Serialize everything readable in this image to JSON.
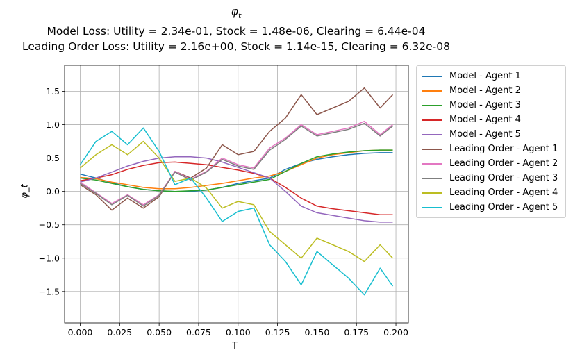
{
  "title": {
    "main": "φ",
    "main_sub": "t",
    "line2": "Model Loss: Utility = 2.34e-01, Stock = 1.48e-06, Clearing = 6.44e-04",
    "line3": "Leading Order Loss: Utility = 2.16e+00, Stock = 1.14e-15, Clearing = 6.32e-08"
  },
  "chart_data": {
    "type": "line",
    "xlabel": "T",
    "ylabel": "φ_t",
    "xlim": [
      -0.0099,
      0.2079
    ],
    "ylim": [
      -1.97,
      1.89
    ],
    "grid": true,
    "legend_position": "outside-right",
    "x_ticks": [
      "0.000",
      "0.025",
      "0.050",
      "0.075",
      "0.100",
      "0.125",
      "0.150",
      "0.175",
      "0.200"
    ],
    "y_ticks": [
      "−1.5",
      "−1.0",
      "−0.5",
      "0.0",
      "0.5",
      "1.0",
      "1.5"
    ],
    "x_tick_values": [
      0,
      0.025,
      0.05,
      0.075,
      0.1,
      0.125,
      0.15,
      0.175,
      0.2
    ],
    "y_tick_values": [
      -1.5,
      -1.0,
      -0.5,
      0.0,
      0.5,
      1.0,
      1.5
    ],
    "x": [
      0.0,
      0.01,
      0.02,
      0.03,
      0.04,
      0.05,
      0.06,
      0.07,
      0.08,
      0.09,
      0.1,
      0.11,
      0.12,
      0.13,
      0.14,
      0.15,
      0.16,
      0.17,
      0.18,
      0.19,
      0.198
    ],
    "series": [
      {
        "name": "Model - Agent 1",
        "color": "#1f77b4",
        "values": [
          0.26,
          0.2,
          0.13,
          0.07,
          0.03,
          0.01,
          0.0,
          0.0,
          0.02,
          0.06,
          0.12,
          0.16,
          0.2,
          0.33,
          0.42,
          0.48,
          0.52,
          0.55,
          0.57,
          0.58,
          0.58
        ]
      },
      {
        "name": "Model - Agent 2",
        "color": "#ff7f0e",
        "values": [
          0.21,
          0.19,
          0.14,
          0.1,
          0.06,
          0.04,
          0.04,
          0.06,
          0.09,
          0.12,
          0.16,
          0.2,
          0.23,
          0.3,
          0.4,
          0.5,
          0.55,
          0.58,
          0.61,
          0.62,
          0.62
        ]
      },
      {
        "name": "Model - Agent 3",
        "color": "#2ca02c",
        "values": [
          0.2,
          0.17,
          0.12,
          0.07,
          0.03,
          0.01,
          0.0,
          0.01,
          0.02,
          0.06,
          0.1,
          0.14,
          0.18,
          0.3,
          0.42,
          0.52,
          0.56,
          0.59,
          0.61,
          0.62,
          0.62
        ]
      },
      {
        "name": "Model - Agent 4",
        "color": "#d62728",
        "values": [
          0.16,
          0.2,
          0.25,
          0.33,
          0.39,
          0.43,
          0.44,
          0.42,
          0.4,
          0.36,
          0.32,
          0.27,
          0.2,
          0.06,
          -0.1,
          -0.22,
          -0.26,
          -0.29,
          -0.32,
          -0.35,
          -0.35
        ]
      },
      {
        "name": "Model - Agent 5",
        "color": "#9467bd",
        "values": [
          0.14,
          0.2,
          0.29,
          0.38,
          0.45,
          0.5,
          0.52,
          0.52,
          0.5,
          0.44,
          0.36,
          0.28,
          0.2,
          0.0,
          -0.22,
          -0.32,
          -0.36,
          -0.4,
          -0.44,
          -0.46,
          -0.46
        ]
      },
      {
        "name": "Leading Order - Agent 1",
        "color": "#8c564b",
        "values": [
          0.1,
          -0.05,
          -0.28,
          -0.1,
          -0.25,
          -0.08,
          0.3,
          0.2,
          0.35,
          0.7,
          0.55,
          0.6,
          0.9,
          1.1,
          1.45,
          1.15,
          1.25,
          1.35,
          1.55,
          1.25,
          1.45
        ]
      },
      {
        "name": "Leading Order - Agent 2",
        "color": "#e377c2",
        "values": [
          0.14,
          -0.02,
          -0.18,
          -0.05,
          -0.2,
          -0.05,
          0.3,
          0.18,
          0.3,
          0.5,
          0.4,
          0.35,
          0.65,
          0.8,
          1.0,
          0.85,
          0.9,
          0.95,
          1.05,
          0.85,
          1.0
        ]
      },
      {
        "name": "Leading Order - Agent 3",
        "color": "#7f7f7f",
        "values": [
          0.12,
          -0.03,
          -0.2,
          -0.06,
          -0.22,
          -0.06,
          0.29,
          0.17,
          0.29,
          0.48,
          0.38,
          0.33,
          0.62,
          0.78,
          0.98,
          0.83,
          0.88,
          0.93,
          1.02,
          0.83,
          0.98
        ]
      },
      {
        "name": "Leading Order - Agent 4",
        "color": "#bcbd22",
        "values": [
          0.35,
          0.55,
          0.7,
          0.55,
          0.75,
          0.5,
          0.15,
          0.2,
          0.05,
          -0.25,
          -0.15,
          -0.2,
          -0.6,
          -0.8,
          -1.0,
          -0.7,
          -0.8,
          -0.9,
          -1.05,
          -0.8,
          -1.0
        ]
      },
      {
        "name": "Leading Order - Agent 5",
        "color": "#17becf",
        "values": [
          0.4,
          0.75,
          0.9,
          0.7,
          0.95,
          0.6,
          0.1,
          0.2,
          -0.1,
          -0.45,
          -0.3,
          -0.25,
          -0.8,
          -1.05,
          -1.4,
          -0.9,
          -1.1,
          -1.3,
          -1.55,
          -1.15,
          -1.42
        ]
      }
    ]
  }
}
